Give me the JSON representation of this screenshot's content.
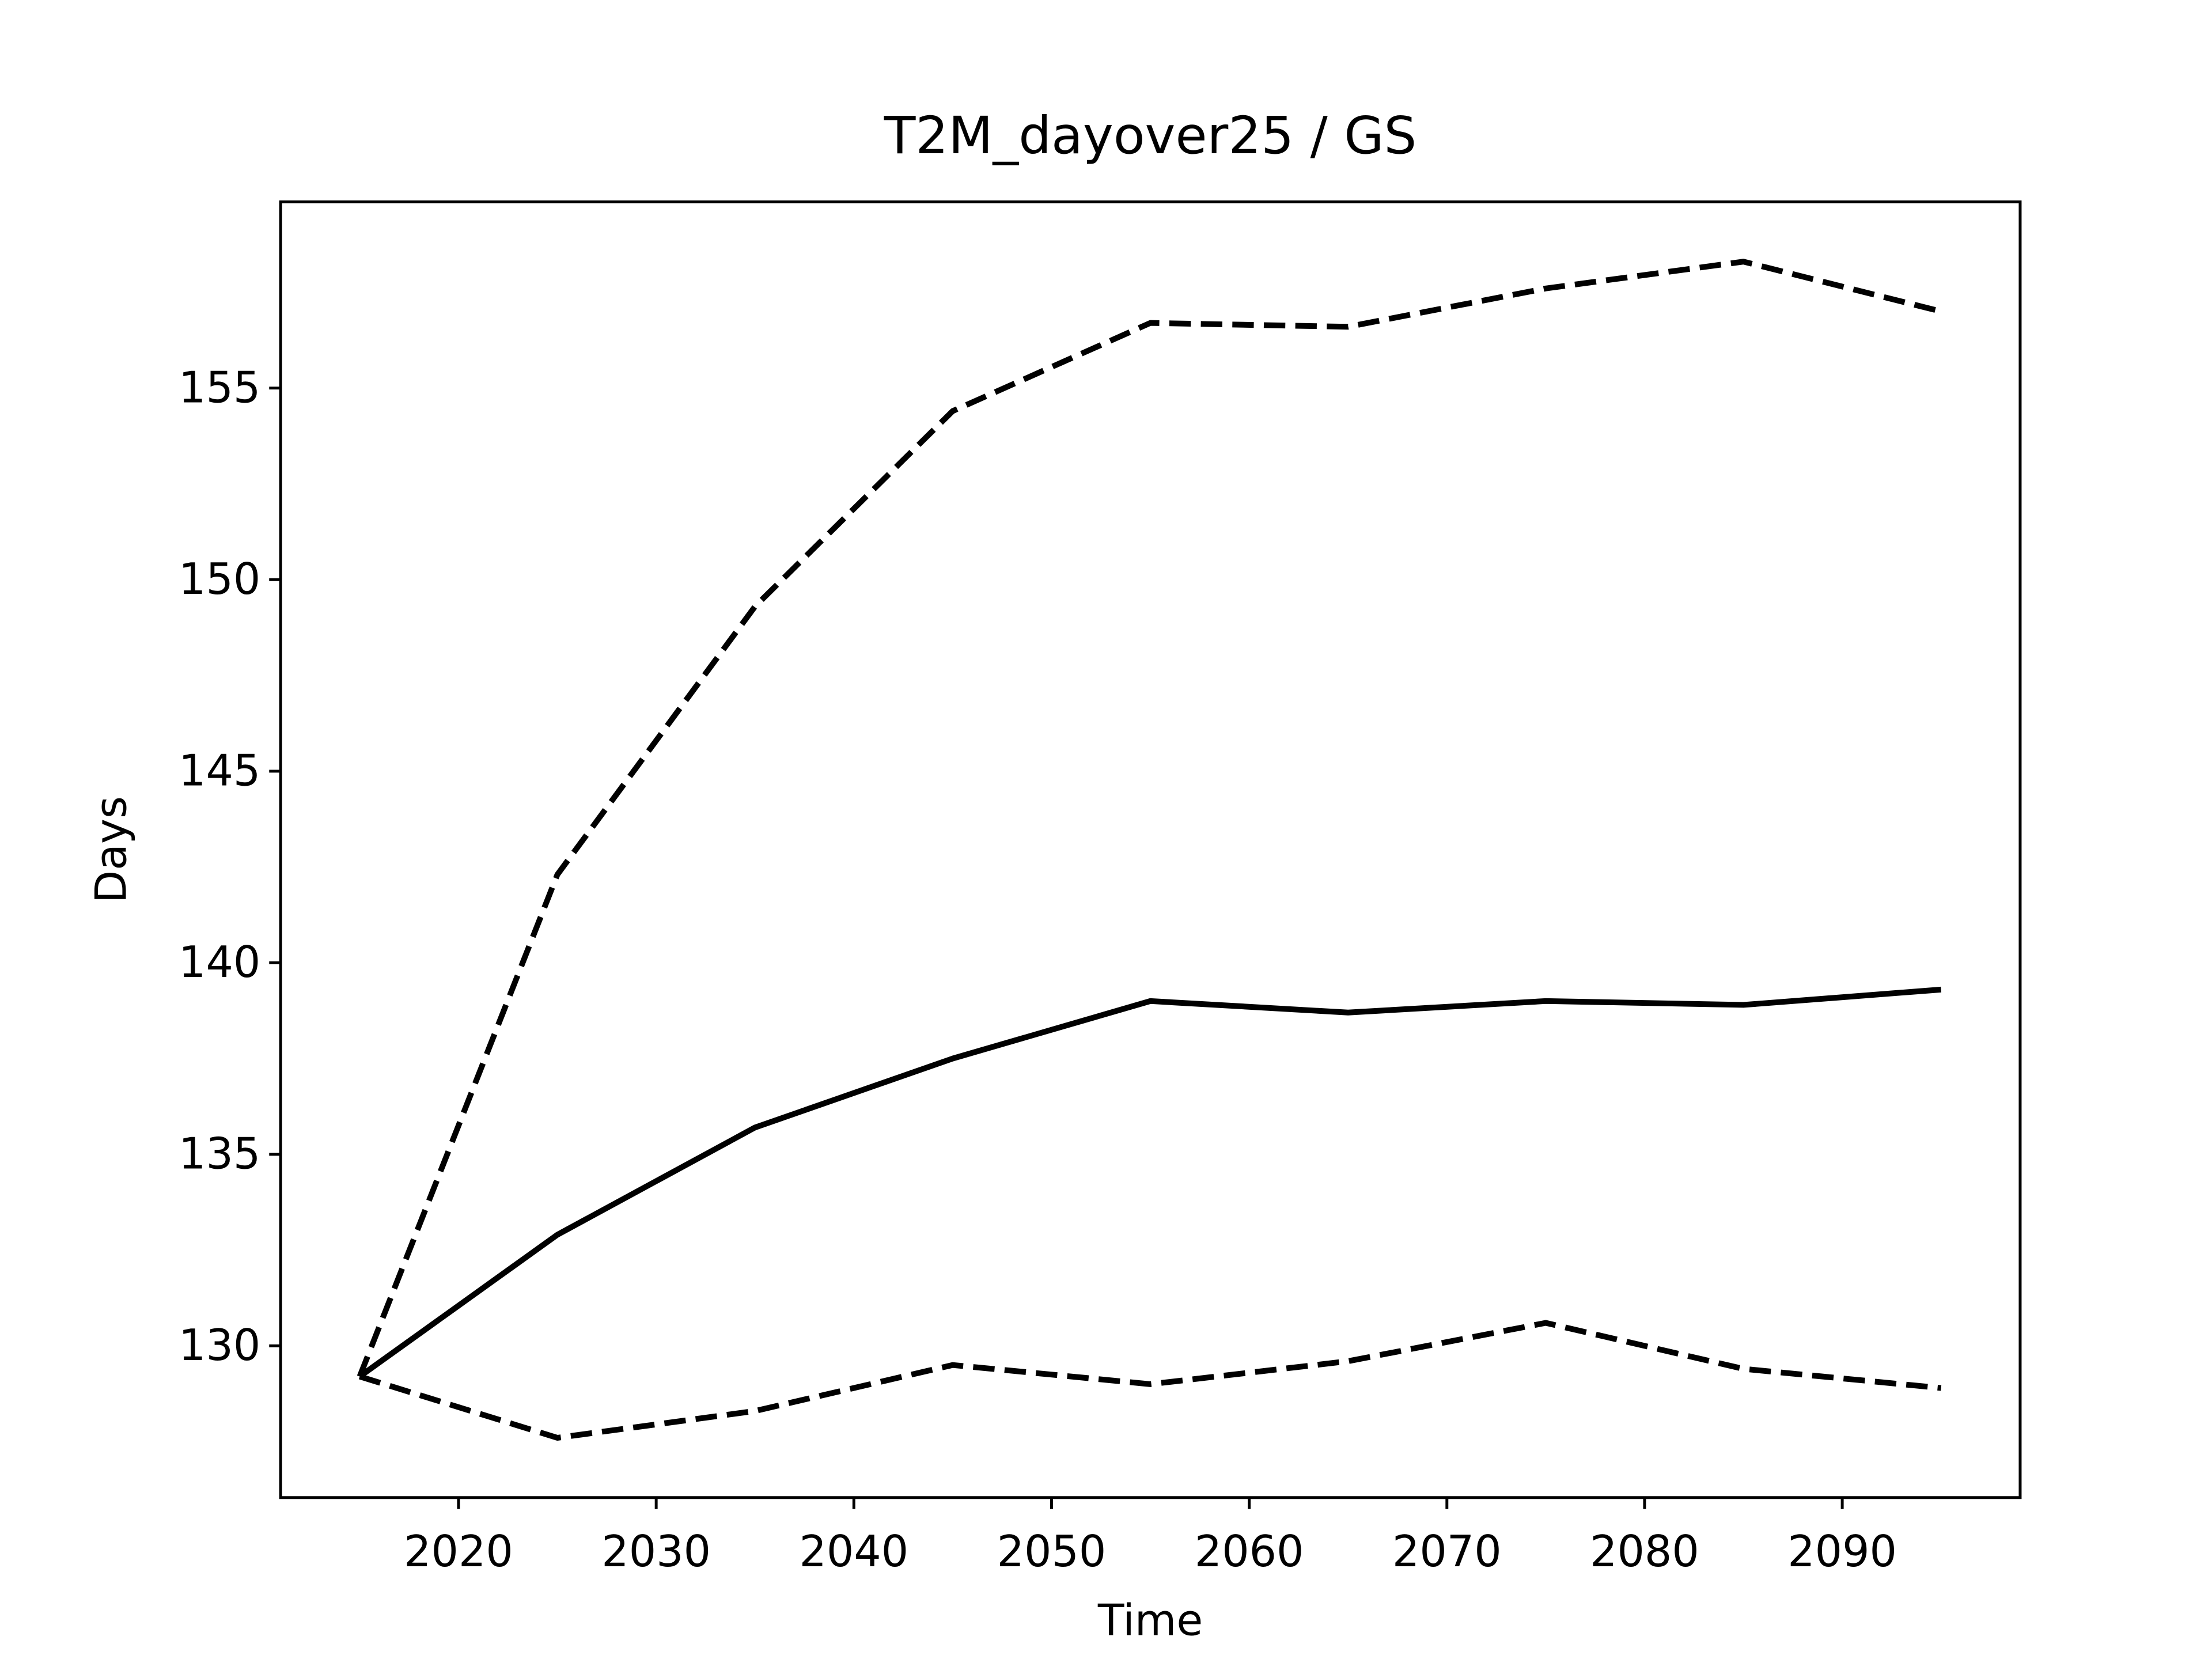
{
  "chart_data": {
    "type": "line",
    "title": "T2M_dayover25 / GS",
    "xlabel": "Time",
    "ylabel": "Days",
    "x": [
      2015,
      2025,
      2035,
      2045,
      2055,
      2065,
      2075,
      2085,
      2095
    ],
    "series": [
      {
        "color": "#000000",
        "dashed": false,
        "values": [
          129.2,
          132.9,
          135.7,
          137.5,
          139.0,
          138.7,
          139.0,
          138.9,
          139.3
        ]
      },
      {
        "color": "#000000",
        "dashed": true,
        "values": [
          129.2,
          142.3,
          149.3,
          154.4,
          156.7,
          156.6,
          157.6,
          158.3,
          157.0
        ]
      },
      {
        "color": "#000000",
        "dashed": true,
        "values": [
          129.2,
          127.6,
          128.3,
          129.5,
          129.0,
          129.6,
          130.6,
          129.4,
          128.9
        ]
      }
    ],
    "xlim": [
      2011,
      2099
    ],
    "xticks": [
      2020,
      2030,
      2040,
      2050,
      2060,
      2070,
      2080,
      2090
    ],
    "ylim": [
      126.04,
      159.86
    ],
    "yticks": [
      130,
      135,
      140,
      145,
      150,
      155
    ],
    "grid": false
  }
}
